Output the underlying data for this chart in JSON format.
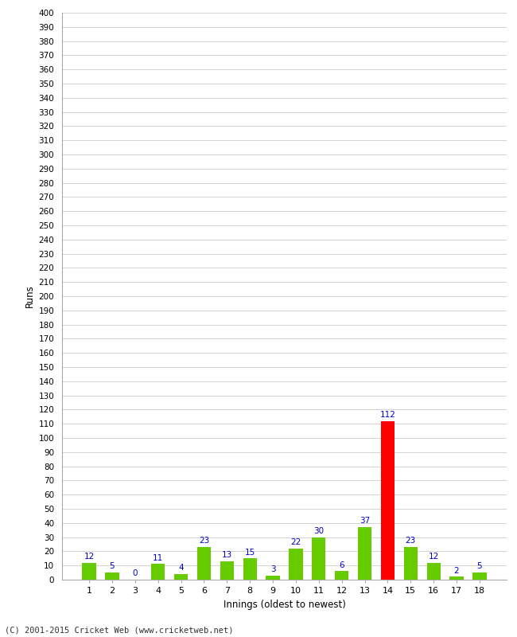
{
  "innings": [
    1,
    2,
    3,
    4,
    5,
    6,
    7,
    8,
    9,
    10,
    11,
    12,
    13,
    14,
    15,
    16,
    17,
    18
  ],
  "runs": [
    12,
    5,
    0,
    11,
    4,
    23,
    13,
    15,
    3,
    22,
    30,
    6,
    37,
    112,
    23,
    12,
    2,
    5
  ],
  "colors": [
    "#66cc00",
    "#66cc00",
    "#66cc00",
    "#66cc00",
    "#66cc00",
    "#66cc00",
    "#66cc00",
    "#66cc00",
    "#66cc00",
    "#66cc00",
    "#66cc00",
    "#66cc00",
    "#66cc00",
    "#ff0000",
    "#66cc00",
    "#66cc00",
    "#66cc00",
    "#66cc00"
  ],
  "xlabel": "Innings (oldest to newest)",
  "ylabel": "Runs",
  "ytick_step": 10,
  "ymax": 400,
  "label_color": "#0000cc",
  "bg_color": "#ffffff",
  "grid_color": "#cccccc",
  "footer": "(C) 2001-2015 Cricket Web (www.cricketweb.net)"
}
